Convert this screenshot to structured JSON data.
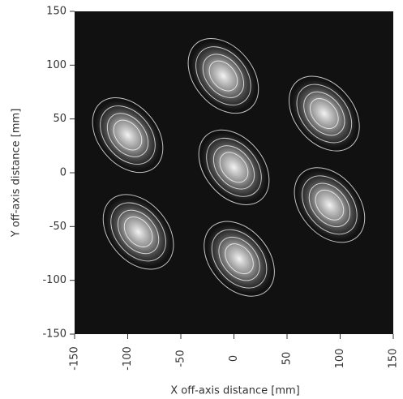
{
  "chart_data": {
    "type": "spot-map",
    "x_label": "X off-axis distance [mm]",
    "y_label": "Y off-axis distance [mm]",
    "xlim": [
      -150,
      150
    ],
    "ylim": [
      -150,
      150
    ],
    "xticks": [
      -150,
      -100,
      -50,
      0,
      50,
      100,
      150
    ],
    "yticks": [
      -150,
      -100,
      -50,
      0,
      50,
      100,
      150
    ],
    "background": "#111111",
    "color": "#ffffff",
    "x": [
      0,
      -10,
      85,
      -100,
      90,
      -90,
      5
    ],
    "y": [
      5,
      90,
      55,
      35,
      -30,
      -55,
      -80
    ]
  }
}
